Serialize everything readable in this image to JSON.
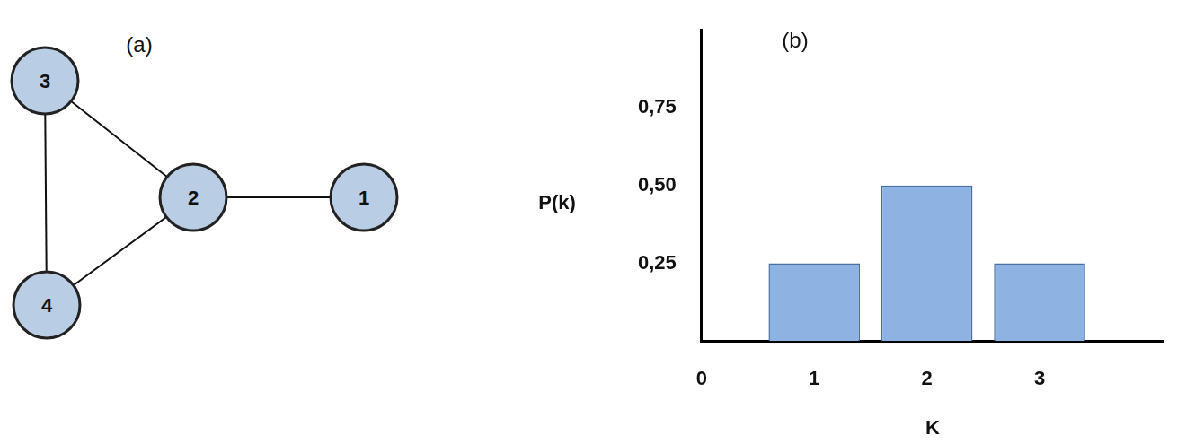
{
  "chart_data": {
    "type": "bar",
    "title": "(b)",
    "xlabel": "K",
    "ylabel": "P(k)",
    "x": [
      1,
      2,
      3
    ],
    "values": [
      0.25,
      0.5,
      0.25
    ],
    "color": "#8db3e2",
    "xlim": [
      0,
      4.1
    ],
    "xticks": [
      0,
      1,
      2,
      3
    ],
    "ylim": [
      0,
      1
    ],
    "yticks": [
      {
        "value": 0.25,
        "label": "0,25"
      },
      {
        "value": 0.5,
        "label": "0,50"
      },
      {
        "value": 0.75,
        "label": "0,75"
      }
    ],
    "grid": false
  },
  "diagram": {
    "label": "(a)",
    "nodes": [
      "1",
      "2",
      "3",
      "4"
    ],
    "edges": [
      [
        "3",
        "2"
      ],
      [
        "2",
        "1"
      ],
      [
        "2",
        "4"
      ],
      [
        "3",
        "4"
      ]
    ]
  }
}
